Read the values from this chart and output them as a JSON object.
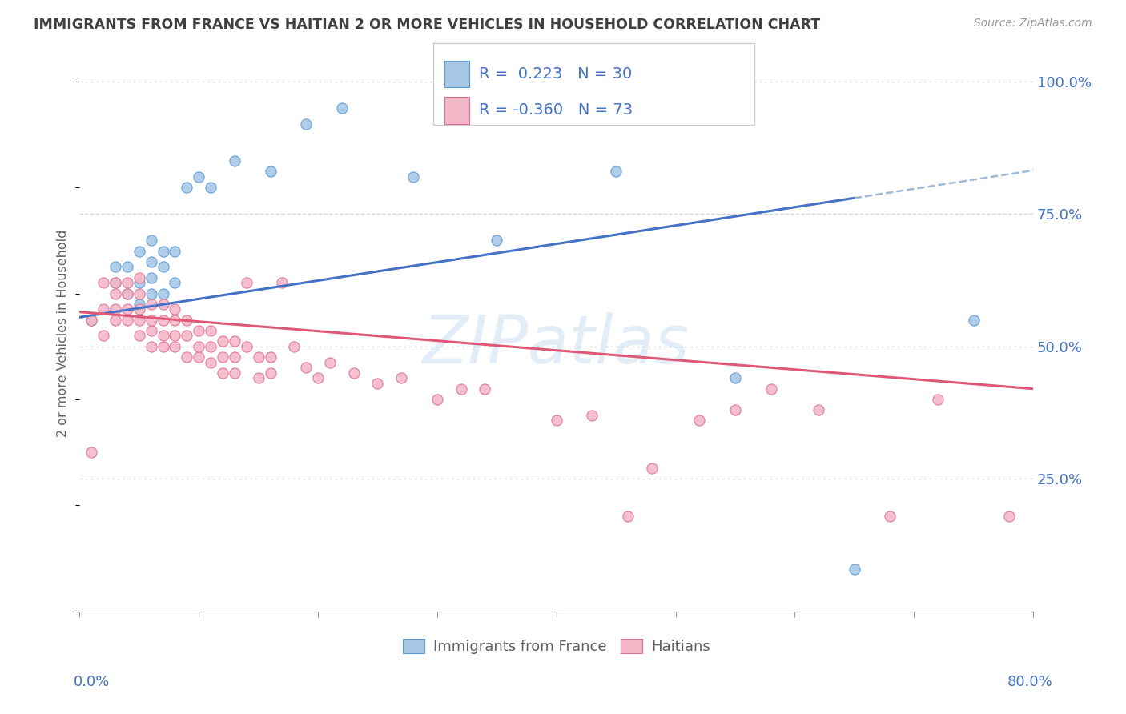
{
  "title": "IMMIGRANTS FROM FRANCE VS HAITIAN 2 OR MORE VEHICLES IN HOUSEHOLD CORRELATION CHART",
  "source": "Source: ZipAtlas.com",
  "ylabel": "2 or more Vehicles in Household",
  "legend_blue_R": 0.223,
  "legend_blue_N": 30,
  "legend_blue_label": "Immigrants from France",
  "legend_pink_R": -0.36,
  "legend_pink_N": 73,
  "legend_pink_label": "Haitians",
  "blue_fill": "#a8c8e8",
  "blue_edge": "#5b9bd5",
  "blue_line": "#4472c4",
  "pink_fill": "#f4b8c8",
  "pink_edge": "#e07090",
  "pink_line": "#e05878",
  "dashed_color": "#a0b8d8",
  "axis_label_color": "#4472c4",
  "title_color": "#404040",
  "ylabel_color": "#606060",
  "grid_color": "#d0d0d0",
  "watermark_color": "#c8ddf0",
  "france_x": [
    0.001,
    0.003,
    0.003,
    0.004,
    0.004,
    0.005,
    0.005,
    0.005,
    0.006,
    0.006,
    0.006,
    0.006,
    0.007,
    0.007,
    0.007,
    0.008,
    0.008,
    0.009,
    0.01,
    0.011,
    0.013,
    0.016,
    0.019,
    0.022,
    0.028,
    0.035,
    0.045,
    0.055,
    0.065,
    0.075
  ],
  "france_y": [
    0.55,
    0.62,
    0.65,
    0.6,
    0.65,
    0.58,
    0.62,
    0.68,
    0.6,
    0.63,
    0.66,
    0.7,
    0.6,
    0.65,
    0.68,
    0.62,
    0.68,
    0.8,
    0.82,
    0.8,
    0.85,
    0.83,
    0.92,
    0.95,
    0.82,
    0.7,
    0.83,
    0.44,
    0.08,
    0.55
  ],
  "haitian_x": [
    0.001,
    0.001,
    0.002,
    0.002,
    0.002,
    0.003,
    0.003,
    0.003,
    0.003,
    0.004,
    0.004,
    0.004,
    0.004,
    0.005,
    0.005,
    0.005,
    0.005,
    0.005,
    0.006,
    0.006,
    0.006,
    0.006,
    0.007,
    0.007,
    0.007,
    0.007,
    0.008,
    0.008,
    0.008,
    0.008,
    0.009,
    0.009,
    0.009,
    0.01,
    0.01,
    0.01,
    0.011,
    0.011,
    0.011,
    0.012,
    0.012,
    0.012,
    0.013,
    0.013,
    0.013,
    0.014,
    0.014,
    0.015,
    0.015,
    0.016,
    0.016,
    0.017,
    0.018,
    0.019,
    0.02,
    0.021,
    0.023,
    0.025,
    0.027,
    0.03,
    0.032,
    0.034,
    0.04,
    0.043,
    0.046,
    0.048,
    0.052,
    0.055,
    0.058,
    0.062,
    0.068,
    0.072,
    0.078
  ],
  "haitian_y": [
    0.3,
    0.55,
    0.52,
    0.57,
    0.62,
    0.55,
    0.57,
    0.6,
    0.62,
    0.55,
    0.57,
    0.6,
    0.62,
    0.52,
    0.55,
    0.57,
    0.6,
    0.63,
    0.5,
    0.53,
    0.55,
    0.58,
    0.5,
    0.52,
    0.55,
    0.58,
    0.5,
    0.52,
    0.55,
    0.57,
    0.48,
    0.52,
    0.55,
    0.48,
    0.5,
    0.53,
    0.47,
    0.5,
    0.53,
    0.45,
    0.48,
    0.51,
    0.45,
    0.48,
    0.51,
    0.62,
    0.5,
    0.44,
    0.48,
    0.45,
    0.48,
    0.62,
    0.5,
    0.46,
    0.44,
    0.47,
    0.45,
    0.43,
    0.44,
    0.4,
    0.42,
    0.42,
    0.36,
    0.37,
    0.18,
    0.27,
    0.36,
    0.38,
    0.42,
    0.38,
    0.18,
    0.4,
    0.18
  ],
  "xlim_data": 0.08,
  "xlim_pct": 80.0,
  "yticks": [
    0.25,
    0.5,
    0.75,
    1.0
  ],
  "ytick_labels": [
    "25.0%",
    "50.0%",
    "75.0%",
    "100.0%"
  ]
}
